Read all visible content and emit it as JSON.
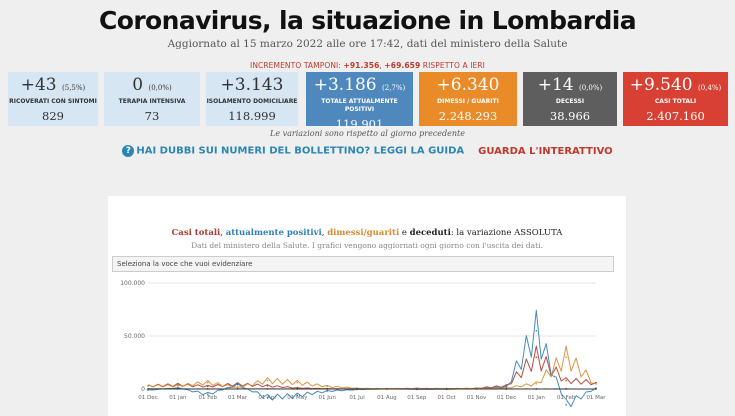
{
  "header": {
    "title": "Coronavirus, la situazione in Lombardia",
    "subtitle": "Aggiornato al 15 marzo 2022 alle ore 17:42, dati del ministero della Salute"
  },
  "increment": {
    "prefix": "INCREMENTO TAMPONI: ",
    "tamponi": "+91.356",
    "sep": ", ",
    "vs": "+69.659",
    "suffix": " RISPETTO A IERI"
  },
  "cards": [
    {
      "delta": "+43",
      "pct": "(5,5%)",
      "label": "RICOVERATI CON SINTOMI",
      "total": "829",
      "style": "light"
    },
    {
      "delta": "0",
      "pct": "(0,0%)",
      "label": "TERAPIA INTENSIVA",
      "total": "73",
      "style": "light"
    },
    {
      "delta": "+3.143",
      "pct": "",
      "label": "ISOLAMENTO DOMICILIARE",
      "total": "118.999",
      "style": "light"
    },
    {
      "delta": "+3.186",
      "pct": "(2,7%)",
      "label": "TOTALE ATTUALMENTE POSITIVI",
      "total": "119.901",
      "style": "blue"
    },
    {
      "delta": "+6.340",
      "pct": "",
      "label": "DIMESSI / GUARITI",
      "total": "2.248.293",
      "style": "orange"
    },
    {
      "delta": "+14",
      "pct": "(0,0%)",
      "label": "DECESSI",
      "total": "38.966",
      "style": "gray"
    },
    {
      "delta": "+9.540",
      "pct": "(0,4%)",
      "label": "CASI TOTALI",
      "total": "2.407.160",
      "style": "red"
    }
  ],
  "note": "Le variazioni sono rispetto al giorno precedente",
  "links": {
    "guide_icon": "question-circle-icon",
    "guide": "HAI DUBBI SUI NUMERI DEL BOLLETTINO? LEGGI LA GUIDA",
    "interactive": "GUARDA L'INTERATTIVO"
  },
  "chart": {
    "title_parts": {
      "casi": "Casi totali",
      "comma1": ", ",
      "positivi": "attualmente positivi",
      "comma2": ", ",
      "dimessi": "dimessi/guariti",
      "e": " e ",
      "deceduti": "deceduti",
      "rest": ": la variazione ASSOLUTA"
    },
    "subtitle": "Dati del ministero della Salute. I grafici vengono aggiornati ogni giorno con l'uscita dei dati.",
    "select_placeholder": "Seleziona la voce che vuoi evidenziare"
  },
  "chart_data": {
    "type": "line",
    "title": "Casi totali, attualmente positivi, dimessi/guariti e deceduti: la variazione ASSOLUTA",
    "x": [
      "01 Dec",
      "01 Jan",
      "01 Feb",
      "01 Mar",
      "01 Apr",
      "01 May",
      "01 Jun",
      "01 Jul",
      "01 Aug",
      "01 Sep",
      "01 Oct",
      "01 Nov",
      "01 Dec",
      "01 Jan",
      "01 Feb",
      "01 Mar"
    ],
    "yticks": [
      "100.000",
      "50.000",
      "0"
    ],
    "ylim": [
      -30000,
      100000
    ],
    "series": [
      {
        "name": "Casi totali",
        "color": "#b03a2e",
        "values": [
          3000,
          4000,
          2500,
          4500,
          3000,
          1000,
          300,
          100,
          300,
          500,
          300,
          700,
          3000,
          30000,
          8000,
          6000
        ]
      },
      {
        "name": "attualmente positivi",
        "color": "#2f7fb5",
        "values": [
          -1000,
          1000,
          -5000,
          4000,
          -8000,
          -6000,
          -2000,
          -500,
          100,
          -300,
          -200,
          300,
          2000,
          55000,
          -15000,
          1000
        ]
      },
      {
        "name": "dimessi/guariti",
        "color": "#d6892c",
        "values": [
          3000,
          3000,
          6000,
          1500,
          8000,
          6000,
          2500,
          700,
          300,
          600,
          400,
          400,
          1000,
          5000,
          30000,
          5000
        ]
      },
      {
        "name": "deceduti",
        "color": "#2b2b2b",
        "values": [
          120,
          80,
          60,
          70,
          90,
          40,
          10,
          3,
          2,
          3,
          3,
          5,
          20,
          70,
          40,
          20
        ]
      }
    ]
  }
}
